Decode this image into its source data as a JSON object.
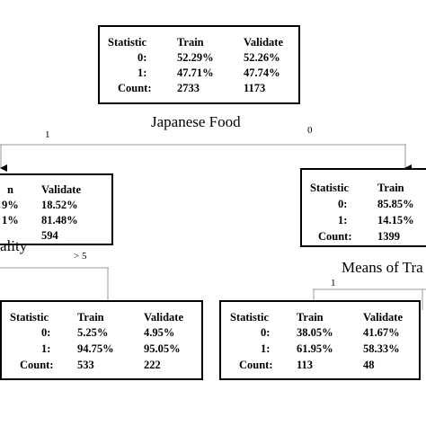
{
  "root": {
    "rows": [
      [
        "Statistic",
        "Train",
        "Validate"
      ],
      [
        "0:",
        "52.29%",
        "52.26%"
      ],
      [
        "1:",
        "47.71%",
        "47.74%"
      ],
      [
        "Count:",
        "2733",
        "1173"
      ]
    ],
    "split_variable": "Japanese Food",
    "branch_left": "1",
    "branch_right": "0"
  },
  "left_node": {
    "rows": [
      [
        "",
        "n",
        "Validate"
      ],
      [
        "",
        "9%",
        "18.52%"
      ],
      [
        "",
        "1%",
        "81.48%"
      ],
      [
        "",
        "",
        "594"
      ]
    ],
    "split_variable": "ality",
    "branch_right": "> 5"
  },
  "right_node": {
    "rows": [
      [
        "Statistic",
        "Train",
        ""
      ],
      [
        "0:",
        "85.85%",
        ""
      ],
      [
        "1:",
        "14.15%",
        ""
      ],
      [
        "Count:",
        "1399",
        ""
      ]
    ],
    "split_variable": "Means of Tra",
    "branch_left": "1"
  },
  "bottom_left_node": {
    "rows": [
      [
        "Statistic",
        "Train",
        "Validate"
      ],
      [
        "0:",
        "5.25%",
        "4.95%"
      ],
      [
        "1:",
        "94.75%",
        "95.05%"
      ],
      [
        "Count:",
        "533",
        "222"
      ]
    ]
  },
  "bottom_right_node": {
    "rows": [
      [
        "Statistic",
        "Train",
        "Validate"
      ],
      [
        "0:",
        "38.05%",
        "41.67%"
      ],
      [
        "1:",
        "61.95%",
        "58.33%"
      ],
      [
        "Count:",
        "113",
        "48"
      ]
    ]
  }
}
